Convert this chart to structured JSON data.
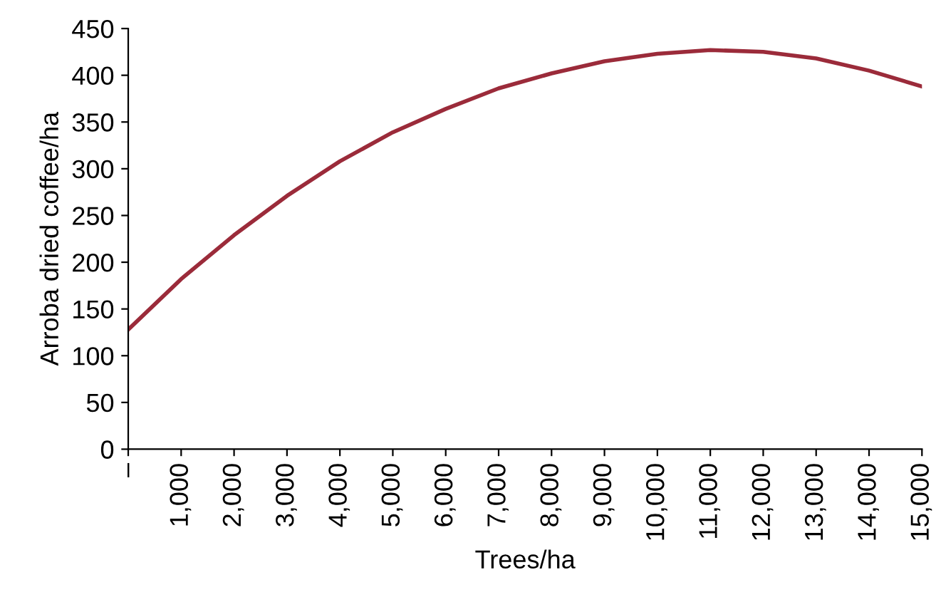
{
  "chart_data": {
    "type": "line",
    "xlabel": "Trees/ha",
    "ylabel": "Arroba dried coffee/ha",
    "x": [
      0,
      1000,
      2000,
      3000,
      4000,
      5000,
      6000,
      7000,
      8000,
      9000,
      10000,
      11000,
      12000,
      13000,
      14000,
      15000
    ],
    "series": [
      {
        "color": "#9b2b3a",
        "values": [
          128,
          182,
          229,
          271,
          308,
          339,
          364,
          386,
          402,
          415,
          423,
          427,
          425,
          418,
          405,
          388
        ]
      }
    ],
    "xlim": [
      0,
      15000
    ],
    "ylim": [
      0,
      450
    ],
    "xticks": [
      {
        "value": 0,
        "label": "–"
      },
      {
        "value": 1000,
        "label": "1,000"
      },
      {
        "value": 2000,
        "label": "2,000"
      },
      {
        "value": 3000,
        "label": "3,000"
      },
      {
        "value": 4000,
        "label": "4,000"
      },
      {
        "value": 5000,
        "label": "5,000"
      },
      {
        "value": 6000,
        "label": "6,000"
      },
      {
        "value": 7000,
        "label": "7,000"
      },
      {
        "value": 8000,
        "label": "8,000"
      },
      {
        "value": 9000,
        "label": "9,000"
      },
      {
        "value": 10000,
        "label": "10,000"
      },
      {
        "value": 11000,
        "label": "11,000"
      },
      {
        "value": 12000,
        "label": "12,000"
      },
      {
        "value": 13000,
        "label": "13,000"
      },
      {
        "value": 14000,
        "label": "14,000"
      },
      {
        "value": 15000,
        "label": "15,000"
      }
    ],
    "yticks": [
      0,
      50,
      100,
      150,
      200,
      250,
      300,
      350,
      400,
      450
    ],
    "grid": false,
    "legend": false,
    "marker": "none",
    "line_style": "solid"
  }
}
